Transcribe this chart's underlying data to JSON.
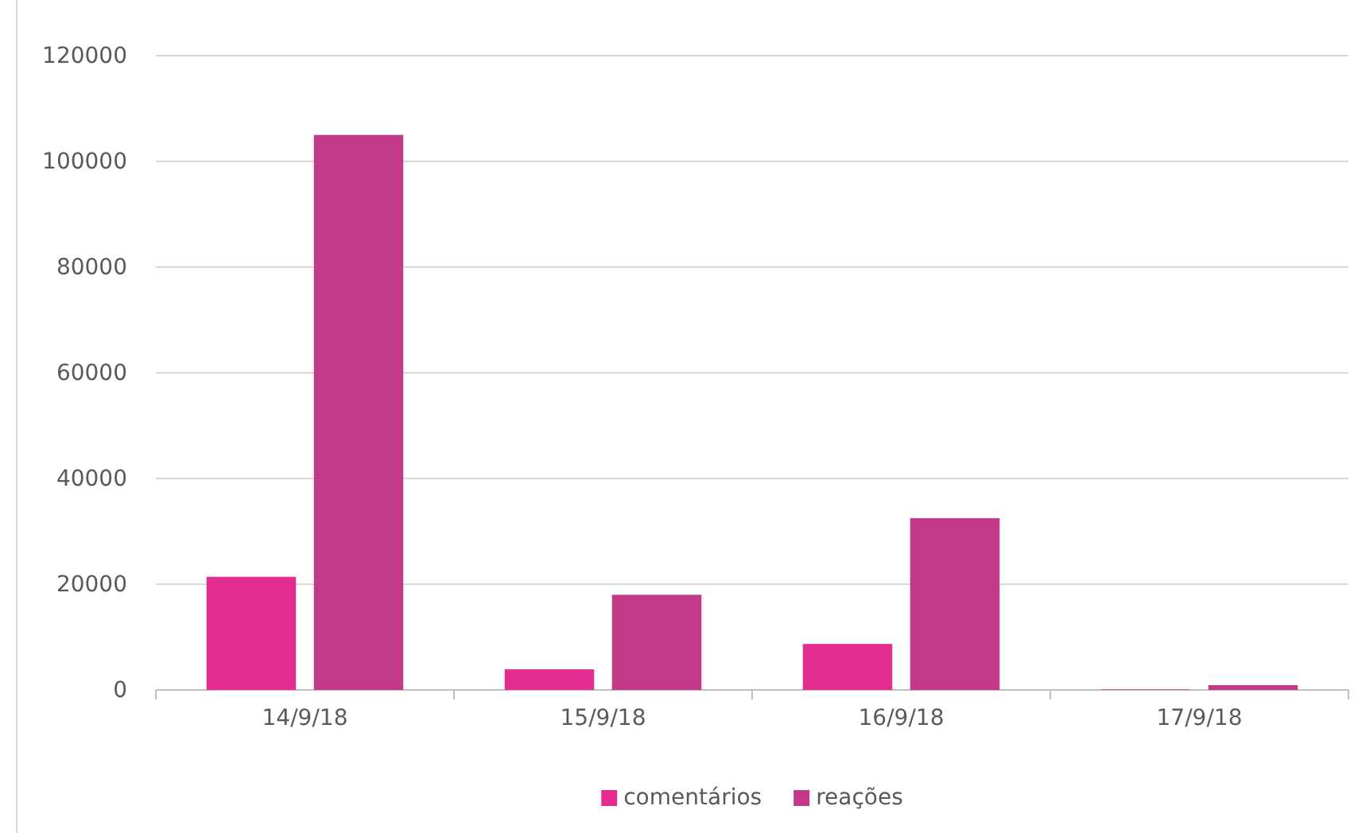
{
  "chart_data": {
    "type": "bar",
    "categories": [
      "14/9/18",
      "15/9/18",
      "16/9/18",
      "17/9/18"
    ],
    "series": [
      {
        "name": "comentários",
        "color": "#e32d91",
        "values": [
          21400,
          3900,
          8700,
          100
        ]
      },
      {
        "name": "reações",
        "color": "#c2398a",
        "values": [
          105000,
          18000,
          32500,
          900
        ]
      }
    ],
    "ylim": [
      0,
      120000
    ],
    "yticks": [
      0,
      20000,
      40000,
      60000,
      80000,
      100000,
      120000
    ],
    "grid": "y",
    "legend": "bottom"
  }
}
